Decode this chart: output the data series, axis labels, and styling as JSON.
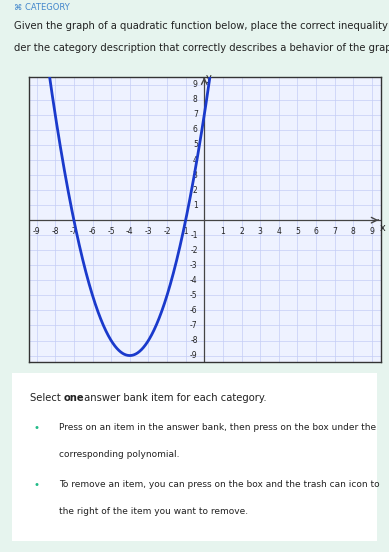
{
  "title_label": "CATEGORY",
  "description": "Given the graph of a quadratic function below, place the correct inequality un-\nder the category description that correctly describes a behavior of the graph.",
  "instruction_title_pre": "Select ",
  "instruction_title_bold": "one",
  "instruction_title_post": " answer bank item for each category.",
  "instruction_bullets": [
    "Press on an item in the answer bank, then press on the box under the\ncorresponding polynomial.",
    "To remove an item, you can press on the box and the trash can icon to\nthe right of the item you want to remove."
  ],
  "quadratic_a": 1,
  "quadratic_b": 8,
  "quadratic_c": 7,
  "x_min": -9,
  "x_max": 9,
  "y_min": -9,
  "y_max": 9,
  "curve_color": "#1a3acc",
  "curve_linewidth": 2.0,
  "grid_color": "#c5cdf5",
  "axis_color": "#444444",
  "graph_bg": "#eef2ff",
  "outer_bg": "#e6f4ee",
  "box_bg": "#ffffff",
  "box_border": "#22bb88",
  "header_color": "#4488cc",
  "text_color": "#222222",
  "tick_fontsize": 5.5,
  "label_fontsize": 7.5,
  "desc_fontsize": 7.2,
  "header_fontsize": 6.0,
  "instr_fontsize": 7.2,
  "bullet_fontsize": 6.5
}
